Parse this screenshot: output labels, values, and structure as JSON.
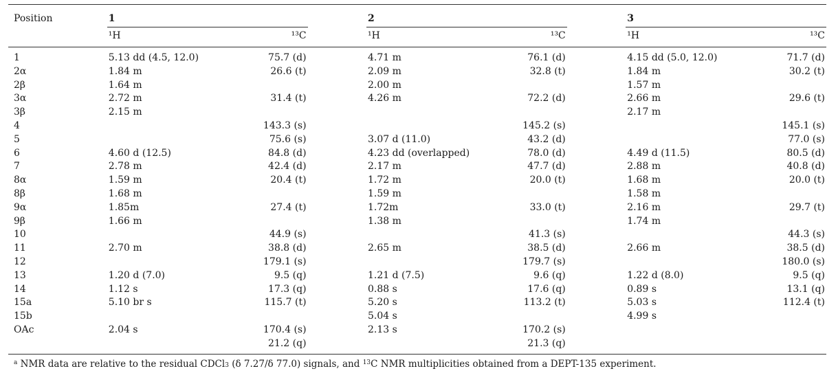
{
  "table": {
    "position_header": "Position",
    "compounds": [
      "1",
      "2",
      "3"
    ],
    "h_label": "¹H",
    "c_label": "¹³C",
    "rows": [
      {
        "pos": "1",
        "c1h": "5.13 dd (4.5, 12.0)",
        "c1c": "75.7 (d)",
        "c2h": "4.71 m",
        "c2c": "76.1 (d)",
        "c3h": "4.15 dd (5.0, 12.0)",
        "c3c": "71.7 (d)"
      },
      {
        "pos": "2α",
        "c1h": "1.84 m",
        "c1c": "26.6 (t)",
        "c2h": "2.09 m",
        "c2c": "32.8 (t)",
        "c3h": "1.84 m",
        "c3c": "30.2 (t)"
      },
      {
        "pos": "2β",
        "c1h": "1.64 m",
        "c1c": "",
        "c2h": "2.00 m",
        "c2c": "",
        "c3h": "1.57 m",
        "c3c": ""
      },
      {
        "pos": "3α",
        "c1h": "2.72 m",
        "c1c": "31.4 (t)",
        "c2h": "4.26 m",
        "c2c": "72.2 (d)",
        "c3h": "2.66 m",
        "c3c": "29.6 (t)"
      },
      {
        "pos": "3β",
        "c1h": "2.15 m",
        "c1c": "",
        "c2h": "",
        "c2c": "",
        "c3h": "2.17 m",
        "c3c": ""
      },
      {
        "pos": "4",
        "c1h": "",
        "c1c": "143.3 (s)",
        "c2h": "",
        "c2c": "145.2 (s)",
        "c3h": "",
        "c3c": "145.1 (s)"
      },
      {
        "pos": "5",
        "c1h": "",
        "c1c": "75.6 (s)",
        "c2h": "3.07 d (11.0)",
        "c2c": "43.2 (d)",
        "c3h": "",
        "c3c": "77.0 (s)"
      },
      {
        "pos": "6",
        "c1h": "4.60 d (12.5)",
        "c1c": "84.8 (d)",
        "c2h": "4.23 dd (overlapped)",
        "c2c": "78.0 (d)",
        "c3h": "4.49 d (11.5)",
        "c3c": "80.5 (d)"
      },
      {
        "pos": "7",
        "c1h": "2.78 m",
        "c1c": "42.4 (d)",
        "c2h": "2.17 m",
        "c2c": "47.7 (d)",
        "c3h": "2.88 m",
        "c3c": "40.8 (d)"
      },
      {
        "pos": "8α",
        "c1h": "1.59 m",
        "c1c": "20.4 (t)",
        "c2h": "1.72 m",
        "c2c": "20.0 (t)",
        "c3h": "1.68 m",
        "c3c": "20.0 (t)"
      },
      {
        "pos": "8β",
        "c1h": "1.68 m",
        "c1c": "",
        "c2h": "1.59 m",
        "c2c": "",
        "c3h": "1.58 m",
        "c3c": ""
      },
      {
        "pos": "9α",
        "c1h": "1.85m",
        "c1c": "27.4 (t)",
        "c2h": "1.72m",
        "c2c": "33.0 (t)",
        "c3h": "2.16 m",
        "c3c": "29.7 (t)"
      },
      {
        "pos": "9β",
        "c1h": "1.66 m",
        "c1c": "",
        "c2h": "1.38 m",
        "c2c": "",
        "c3h": "1.74 m",
        "c3c": ""
      },
      {
        "pos": "10",
        "c1h": "",
        "c1c": "44.9 (s)",
        "c2h": "",
        "c2c": "41.3 (s)",
        "c3h": "",
        "c3c": "44.3 (s)"
      },
      {
        "pos": "11",
        "c1h": "2.70 m",
        "c1c": "38.8 (d)",
        "c2h": "2.65 m",
        "c2c": "38.5 (d)",
        "c3h": "2.66 m",
        "c3c": "38.5 (d)"
      },
      {
        "pos": "12",
        "c1h": "",
        "c1c": "179.1 (s)",
        "c2h": "",
        "c2c": "179.7 (s)",
        "c3h": "",
        "c3c": "180.0 (s)"
      },
      {
        "pos": "13",
        "c1h": "1.20 d (7.0)",
        "c1c": "9.5 (q)",
        "c2h": "1.21 d (7.5)",
        "c2c": "9.6 (q)",
        "c3h": "1.22 d (8.0)",
        "c3c": "9.5 (q)"
      },
      {
        "pos": "14",
        "c1h": "1.12 s",
        "c1c": "17.3 (q)",
        "c2h": "0.88 s",
        "c2c": "17.6 (q)",
        "c3h": "0.89 s",
        "c3c": "13.1 (q)"
      },
      {
        "pos": "15a",
        "c1h": "5.10 br s",
        "c1c": "115.7 (t)",
        "c2h": "5.20 s",
        "c2c": "113.2 (t)",
        "c3h": "5.03 s",
        "c3c": "112.4 (t)"
      },
      {
        "pos": "15b",
        "c1h": "",
        "c1c": "",
        "c2h": "5.04 s",
        "c2c": "",
        "c3h": "4.99 s",
        "c3c": ""
      },
      {
        "pos": "OAc",
        "c1h": "2.04 s",
        "c1c": "170.4 (s)",
        "c2h": "2.13 s",
        "c2c": "170.2 (s)",
        "c3h": "",
        "c3c": ""
      },
      {
        "pos": "",
        "c1h": "",
        "c1c": "21.2 (q)",
        "c2h": "",
        "c2c": "21.3 (q)",
        "c3h": "",
        "c3c": ""
      }
    ]
  },
  "footnote": {
    "marker": "a",
    "text_1": " NMR data are relative to the residual CDCl",
    "sub": "3",
    "text_2": " (δ 7.27/δ 77.0) signals, and ",
    "sup": "13",
    "text_3": "C NMR multiplicities obtained from a DEPT-135 experiment."
  }
}
